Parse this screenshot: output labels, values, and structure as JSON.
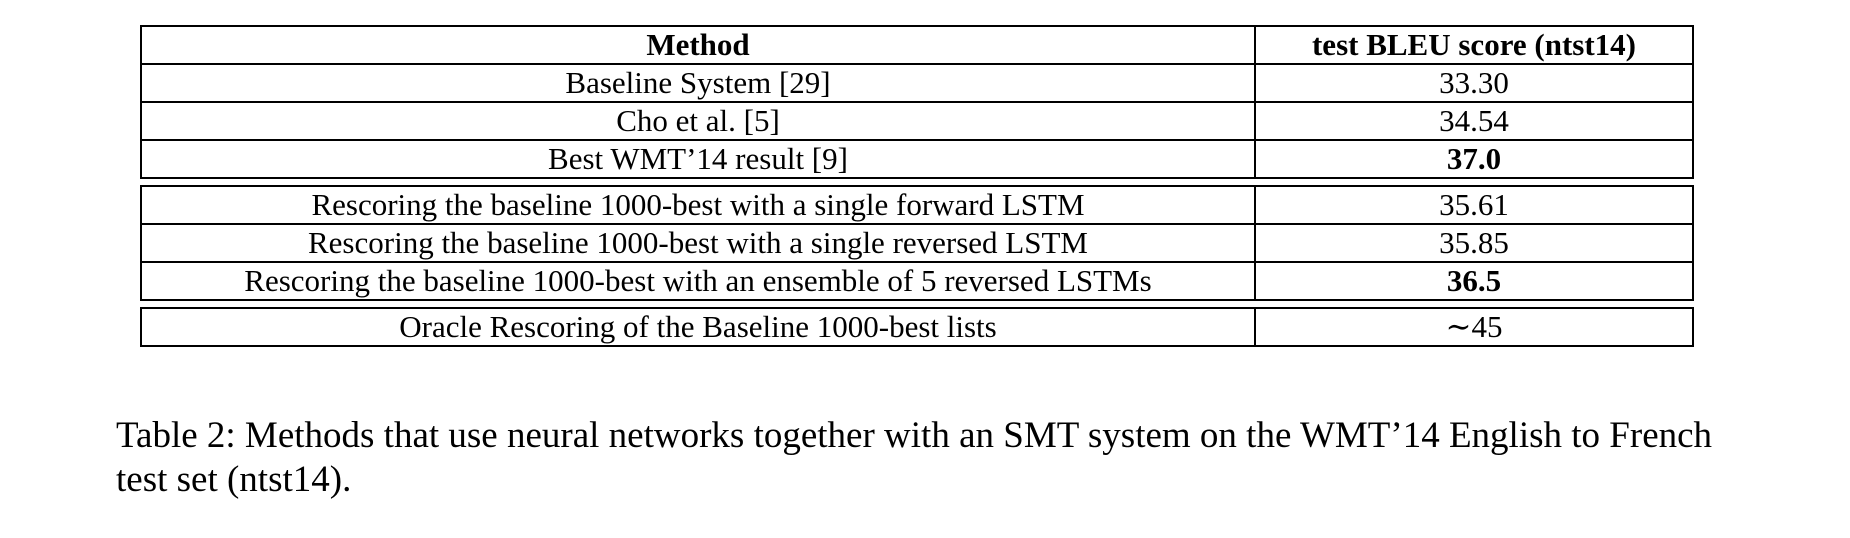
{
  "table": {
    "headers": [
      "Method",
      "test BLEU score (ntst14)"
    ],
    "groups": [
      [
        {
          "method": "Baseline System [29]",
          "score": "33.30",
          "bold": false
        },
        {
          "method": "Cho et al. [5]",
          "score": "34.54",
          "bold": false
        },
        {
          "method": "Best WMT’14 result [9]",
          "score": "37.0",
          "bold": true
        }
      ],
      [
        {
          "method": "Rescoring the baseline 1000-best with a single forward LSTM",
          "score": "35.61",
          "bold": false
        },
        {
          "method": "Rescoring the baseline 1000-best with a single reversed LSTM",
          "score": "35.85",
          "bold": false
        },
        {
          "method": "Rescoring the baseline 1000-best with an ensemble of 5 reversed LSTMs",
          "score": "36.5",
          "bold": true
        }
      ],
      [
        {
          "method": "Oracle Rescoring of the Baseline 1000-best lists",
          "score": "∼45",
          "bold": false
        }
      ]
    ]
  },
  "caption": "Table 2: Methods that use neural networks together with an SMT system on the WMT’14 English to French test set (ntst14)."
}
